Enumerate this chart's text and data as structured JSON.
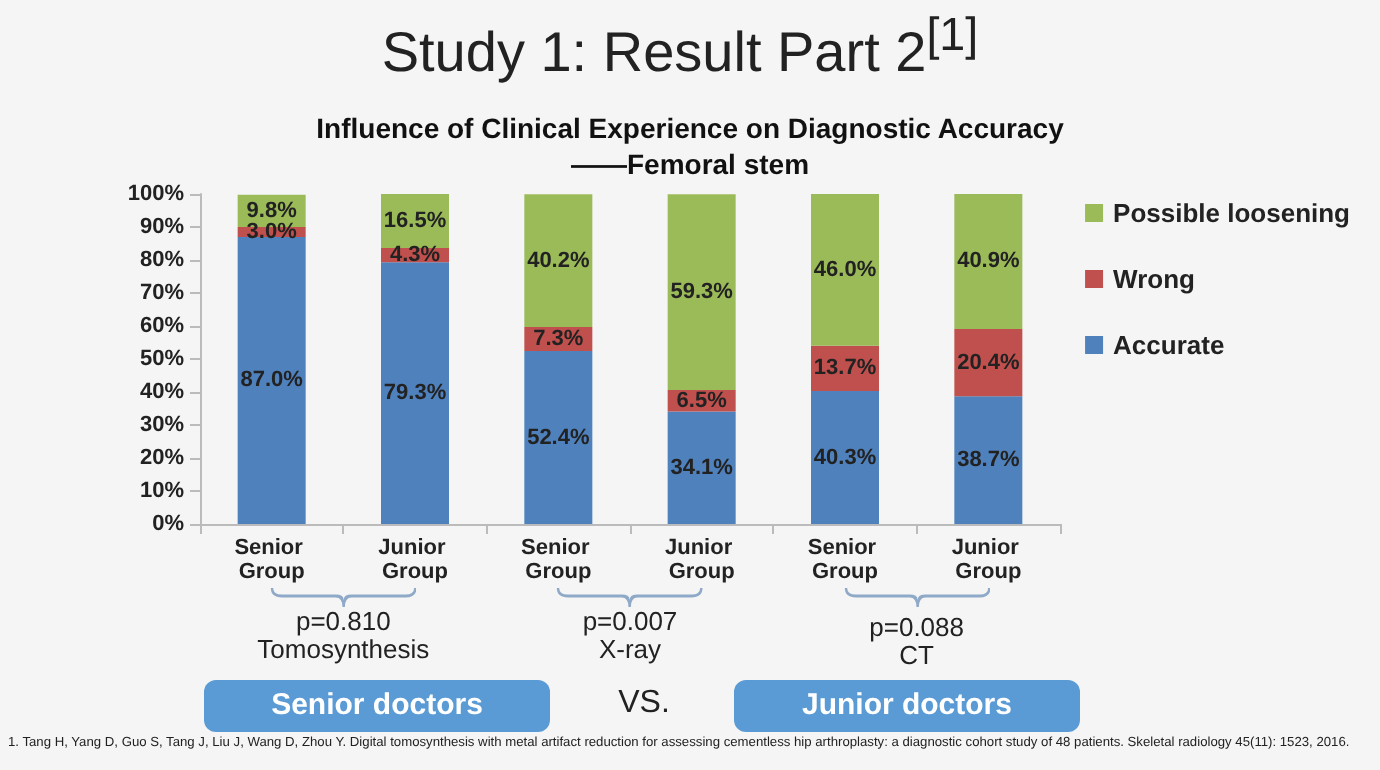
{
  "chart_data": {
    "type": "bar",
    "stacked": true,
    "title": "Influence of Clinical Experience on Diagnostic Accuracy",
    "subtitle": "——Femoral stem",
    "categories": [
      "Senior Group",
      "Junior Group",
      "Senior Group",
      "Junior Group",
      "Senior Group",
      "Junior Group"
    ],
    "series": [
      {
        "name": "Accurate",
        "color": "#4f81bd",
        "values": [
          87.0,
          79.3,
          52.4,
          34.1,
          40.3,
          38.7
        ],
        "value_labels": [
          "87.0%",
          "79.3%",
          "52.4%",
          "34.1%",
          "40.3%",
          "38.7%"
        ]
      },
      {
        "name": "Wrong",
        "color": "#c0504d",
        "values": [
          3.0,
          4.3,
          7.3,
          6.5,
          13.7,
          20.4
        ],
        "value_labels": [
          "3.0%",
          "4.3%",
          "7.3%",
          "6.5%",
          "13.7%",
          "20.4%"
        ]
      },
      {
        "name": "Possible loosening",
        "color": "#9bbb59",
        "values": [
          9.8,
          16.5,
          40.2,
          59.3,
          46.0,
          40.9
        ],
        "value_labels": [
          "9.8%",
          "16.5%",
          "40.2%",
          "59.3%",
          "46.0%",
          "40.9%"
        ]
      }
    ],
    "ylim": [
      0,
      100
    ],
    "yticks": [
      {
        "value": 0,
        "label": "0%"
      },
      {
        "value": 10,
        "label": "10%"
      },
      {
        "value": 20,
        "label": "20%"
      },
      {
        "value": 30,
        "label": "30%"
      },
      {
        "value": 40,
        "label": "40%"
      },
      {
        "value": 50,
        "label": "50%"
      },
      {
        "value": 60,
        "label": "60%"
      },
      {
        "value": 70,
        "label": "70%"
      },
      {
        "value": 80,
        "label": "80%"
      },
      {
        "value": 90,
        "label": "90%"
      },
      {
        "value": 100,
        "label": "100%"
      }
    ],
    "grid": false,
    "legend": "right",
    "annotations": [
      "Study 1: Result Part 2$^{[1]}$",
      "p=0.810",
      "Tomosynthesis",
      "p=0.007",
      "X-ray",
      "p=0.088",
      "CT",
      "Senior doctors",
      "VS.",
      "Junior doctors",
      "1. Tang H, Yang D, Guo S, Tang J, Liu J, Wang D, Zhou Y. Digital tomosynthesis with metal artifact reduction for assessing cementless hip arthroplasty: a diagnostic cohort study of 48 patients. Skeletal radiology 45(11): 1523, 2016."
    ]
  }
}
